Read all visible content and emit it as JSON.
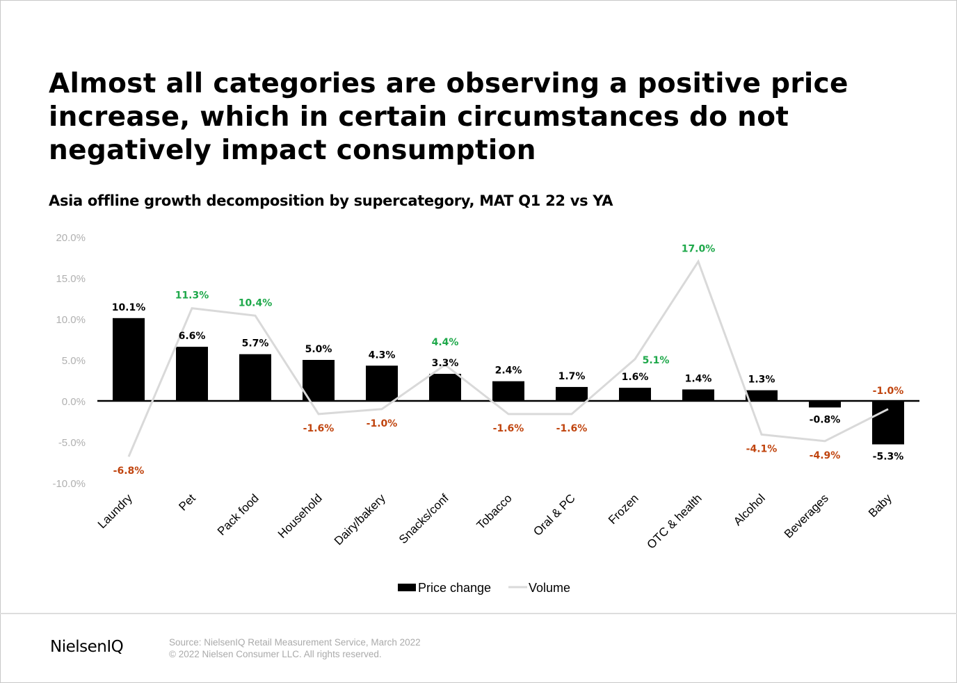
{
  "title": "Almost all categories are observing a positive price increase, which in certain circumstances do not negatively impact consumption",
  "footer": {
    "logo": "NielsenIQ",
    "source": "Source: NielsenIQ Retail Measurement Service, March 2022",
    "copyright": "© 2022 Nielsen Consumer LLC. All rights reserved."
  },
  "chart_data": {
    "type": "bar",
    "title": "Asia offline growth decomposition by supercategory, MAT Q1 22 vs YA",
    "categories": [
      "Laundry",
      "Pet",
      "Pack food",
      "Household",
      "Dairy/bakery",
      "Snacks/conf",
      "Tobacco",
      "Oral & PC",
      "Frozen",
      "OTC & health",
      "Alcohol",
      "Beverages",
      "Baby"
    ],
    "series": [
      {
        "name": "Price change",
        "type": "bar",
        "color": "#000000",
        "values": [
          10.1,
          6.6,
          5.7,
          5.0,
          4.3,
          3.3,
          2.4,
          1.7,
          1.6,
          1.4,
          1.3,
          -0.8,
          -5.3
        ]
      },
      {
        "name": "Volume",
        "type": "line",
        "color": "#d9d9d9",
        "values": [
          -6.8,
          11.3,
          10.4,
          -1.6,
          -1.0,
          4.4,
          -1.6,
          -1.6,
          5.1,
          17.0,
          -4.1,
          -4.9,
          -1.0
        ]
      }
    ],
    "ylim": [
      -10,
      20
    ],
    "yticks": [
      20,
      15,
      10,
      5,
      0,
      -5,
      -10
    ],
    "unit": "%",
    "grid": false,
    "legend": "bottom",
    "colors": {
      "positive_label": "#1ea84a",
      "negative_label": "#c0440e",
      "axis_tick": "#b0b0b0"
    }
  }
}
